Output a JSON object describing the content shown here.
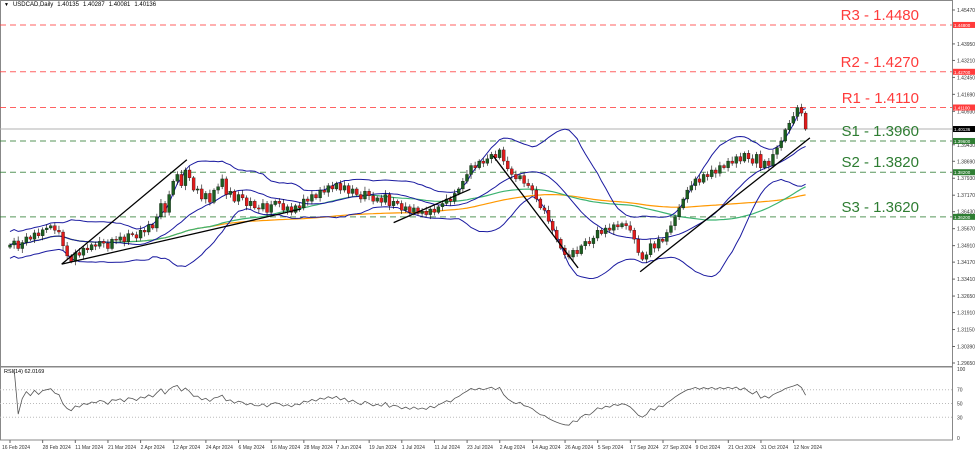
{
  "header": {
    "symbol": "USDCAD,Daily",
    "open": "1.40135",
    "high": "1.40287",
    "low": "1.40081",
    "close": "1.40136"
  },
  "rsi_label": "RSI(14) 62.0169",
  "colors": {
    "resistance": "#ff3b3b",
    "support": "#2e7d32",
    "bull": "#1b5e20",
    "bear": "#e01b1b",
    "bands": "#1a1aa0",
    "ma_fast": "#3cb371",
    "ma_slow": "#ff9800",
    "trendline": "#000000",
    "current_price": "#000000"
  },
  "levels": [
    {
      "label": "R3 - 1.4480",
      "price": 1.448,
      "axis_label": "1.44800",
      "type": "resistance"
    },
    {
      "label": "R2 - 1.4270",
      "price": 1.427,
      "axis_label": "1.42700",
      "type": "resistance"
    },
    {
      "label": "R1 - 1.4110",
      "price": 1.411,
      "axis_label": "1.41100",
      "type": "resistance"
    },
    {
      "label": "S1 - 1.3960",
      "price": 1.396,
      "axis_label": "1.39600",
      "type": "support"
    },
    {
      "label": "S2 - 1.3820",
      "price": 1.382,
      "axis_label": "1.38200",
      "type": "support"
    },
    {
      "label": "S3 - 1.3620",
      "price": 1.362,
      "axis_label": "1.36200",
      "type": "support"
    }
  ],
  "current_price": {
    "price": 1.40136,
    "axis_label": "1.40136"
  },
  "chart_data": {
    "type": "candlestick",
    "title": "USDCAD,Daily",
    "ylim": [
      1.2965,
      1.4547
    ],
    "y_ticks": [
      "1.45470",
      "1.43950",
      "1.43210",
      "1.42450",
      "1.41690",
      "1.40930",
      "1.39430",
      "1.38690",
      "1.37930",
      "1.37170",
      "1.36430",
      "1.35670",
      "1.34910",
      "1.34170",
      "1.33410",
      "1.32650",
      "1.31910",
      "1.31150",
      "1.30390",
      "1.29650"
    ],
    "x_ticks": [
      "16 Feb 2024",
      "28 Feb 2024",
      "11 Mar 2024",
      "21 Mar 2024",
      "2 Apr 2024",
      "12 Apr 2024",
      "24 Apr 2024",
      "6 May 2024",
      "16 May 2024",
      "28 May 2024",
      "7 Jun 2024",
      "19 Jun 2024",
      "1 Jul 2024",
      "11 Jul 2024",
      "23 Jul 2024",
      "2 Aug 2024",
      "14 Aug 2024",
      "26 Aug 2024",
      "5 Sep 2024",
      "17 Sep 2024",
      "27 Sep 2024",
      "9 Oct 2024",
      "21 Oct 2024",
      "31 Oct 2024",
      "12 Nov 2024"
    ],
    "closes": [
      1.3494,
      1.3512,
      1.3478,
      1.3505,
      1.353,
      1.352,
      1.3548,
      1.3535,
      1.3562,
      1.357,
      1.358,
      1.356,
      1.3552,
      1.349,
      1.3445,
      1.342,
      1.346,
      1.3448,
      1.348,
      1.3472,
      1.3495,
      1.3488,
      1.351,
      1.3502,
      1.3478,
      1.352,
      1.3515,
      1.353,
      1.3508,
      1.3545,
      1.354,
      1.3525,
      1.356,
      1.3552,
      1.3585,
      1.357,
      1.362,
      1.368,
      1.364,
      1.372,
      1.378,
      1.381,
      1.376,
      1.383,
      1.3795,
      1.374,
      1.3745,
      1.37,
      1.3725,
      1.3685,
      1.374,
      1.3755,
      1.379,
      1.372,
      1.3735,
      1.369,
      1.372,
      1.3705,
      1.367,
      1.369,
      1.366,
      1.3655,
      1.368,
      1.364,
      1.3675,
      1.369,
      1.368,
      1.365,
      1.3665,
      1.364,
      1.367,
      1.366,
      1.37,
      1.369,
      1.372,
      1.3705,
      1.374,
      1.373,
      1.376,
      1.3745,
      1.377,
      1.374,
      1.376,
      1.3725,
      1.3745,
      1.372,
      1.37,
      1.3735,
      1.3715,
      1.369,
      1.3705,
      1.3685,
      1.372,
      1.367,
      1.369,
      1.368,
      1.365,
      1.3665,
      1.364,
      1.366,
      1.3635,
      1.3645,
      1.363,
      1.3655,
      1.364,
      1.3665,
      1.368,
      1.37,
      1.369,
      1.3725,
      1.3745,
      1.378,
      1.381,
      1.385,
      1.384,
      1.387,
      1.386,
      1.388,
      1.39,
      1.3885,
      1.392,
      1.387,
      1.3835,
      1.381,
      1.379,
      1.3805,
      1.377,
      1.376,
      1.374,
      1.37,
      1.366,
      1.365,
      1.36,
      1.356,
      1.352,
      1.348,
      1.345,
      1.344,
      1.347,
      1.3455,
      1.349,
      1.351,
      1.35,
      1.3525,
      1.356,
      1.3545,
      1.357,
      1.356,
      1.3585,
      1.3575,
      1.359,
      1.358,
      1.356,
      1.352,
      1.346,
      1.343,
      1.345,
      1.35,
      1.348,
      1.352,
      1.351,
      1.355,
      1.358,
      1.362,
      1.366,
      1.37,
      1.374,
      1.376,
      1.379,
      1.3775,
      1.381,
      1.38,
      1.383,
      1.3815,
      1.385,
      1.384,
      1.387,
      1.386,
      1.389,
      1.387,
      1.3905,
      1.388,
      1.386,
      1.39,
      1.384,
      1.387,
      1.385,
      1.39,
      1.393,
      1.396,
      1.401,
      1.404,
      1.407,
      1.411,
      1.4085,
      1.40136
    ],
    "indicators": [
      "Bollinger Bands (20, 2)",
      "SMA 50",
      "SMA 100",
      "RSI 14"
    ],
    "trendlines": [
      {
        "from": [
          "6 Mar 2024",
          1.3408
        ],
        "to": [
          "17 Apr 2024",
          1.3876
        ]
      },
      {
        "from": [
          "6 Mar 2024",
          1.3408
        ],
        "to": [
          "27 May 2024",
          1.3655
        ]
      },
      {
        "from": [
          "28 Jun 2024",
          1.3594
        ],
        "to": [
          "24 Jul 2024",
          1.3744
        ]
      },
      {
        "from": [
          "31 Jul 2024",
          1.3893
        ],
        "to": [
          "30 Aug 2024",
          1.3391
        ]
      },
      {
        "from": [
          "20 Sep 2024",
          1.3374
        ],
        "to": [
          "18 Nov 2024",
          1.3974
        ]
      }
    ],
    "rsi": {
      "last": 62.0169,
      "levels": [
        70,
        50,
        30
      ],
      "ticks": [
        "100",
        "70",
        "50",
        "30",
        "0"
      ],
      "ylim": [
        0,
        100
      ]
    }
  }
}
